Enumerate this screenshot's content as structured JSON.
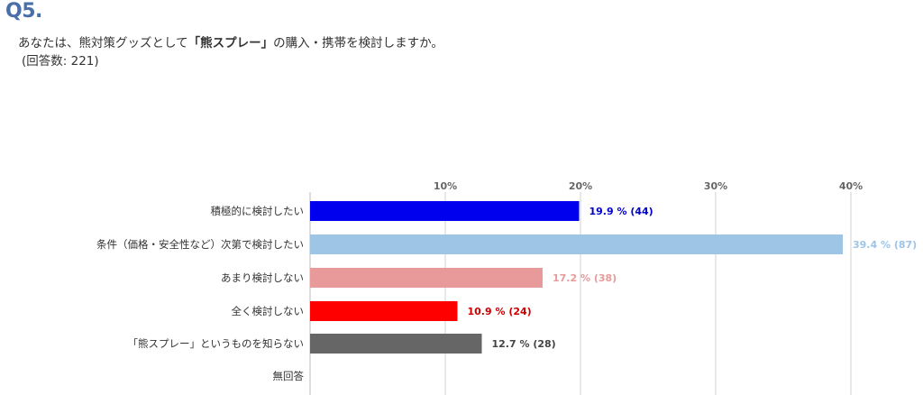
{
  "question": {
    "number": "Q5.",
    "text_before": "あなたは、熊対策グッズとして",
    "text_emphasis": "「熊スプレー」",
    "text_after": "の購入・携帯を検討しますか。",
    "response_count": "(回答数: 221)"
  },
  "chart_data": {
    "type": "bar",
    "orientation": "horizontal",
    "title": "",
    "xlabel": "",
    "ylabel": "",
    "xlim": [
      0,
      40
    ],
    "ticks": [
      "10%",
      "20%",
      "30%",
      "40%"
    ],
    "grid": true,
    "categories": [
      "積極的に検討したい",
      "条件（価格・安全性など）次第で検討したい",
      "あまり検討しない",
      "全く検討しない",
      "「熊スプレー」というものを知らない",
      "無回答"
    ],
    "values": [
      19.9,
      39.4,
      17.2,
      10.9,
      12.7,
      0
    ],
    "labels": [
      "19.9 % (44)",
      "39.4 % (87)",
      "17.2 % (38)",
      "10.9 % (24)",
      "12.7 % (28)",
      ""
    ],
    "colors": [
      "#0000ee",
      "#9ec4e6",
      "#e89a9a",
      "#ff0000",
      "#666666",
      "#cccccc"
    ],
    "label_colors": [
      "#0000cc",
      "#9ec4e6",
      "#e89a9a",
      "#cc0000",
      "#444444",
      "#666666"
    ]
  }
}
